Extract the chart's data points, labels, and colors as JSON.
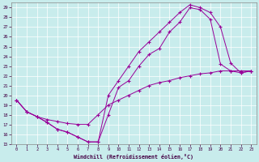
{
  "xlabel": "Windchill (Refroidissement éolien,°C)",
  "background_color": "#c8ecec",
  "line_color": "#990099",
  "grid_color": "#ffffff",
  "xlim": [
    -0.5,
    23.5
  ],
  "ylim": [
    15,
    29.5
  ],
  "xticks": [
    0,
    1,
    2,
    3,
    4,
    5,
    6,
    7,
    8,
    9,
    10,
    11,
    12,
    13,
    14,
    15,
    16,
    17,
    18,
    19,
    20,
    21,
    22,
    23
  ],
  "yticks": [
    15,
    16,
    17,
    18,
    19,
    20,
    21,
    22,
    23,
    24,
    25,
    26,
    27,
    28,
    29
  ],
  "line1_x": [
    0,
    1,
    2,
    3,
    4,
    5,
    6,
    7,
    8,
    9,
    10,
    11,
    12,
    13,
    14,
    15,
    16,
    17,
    18,
    19,
    20,
    21,
    22,
    23
  ],
  "line1_y": [
    19.5,
    18.3,
    17.8,
    17.2,
    16.5,
    16.2,
    15.7,
    15.2,
    15.2,
    18.0,
    20.8,
    21.5,
    23.0,
    24.2,
    24.8,
    26.5,
    27.5,
    29.0,
    28.8,
    27.8,
    23.2,
    22.5,
    22.3,
    22.5
  ],
  "line2_x": [
    0,
    1,
    2,
    3,
    4,
    5,
    6,
    7,
    8,
    9,
    10,
    11,
    12,
    13,
    14,
    15,
    16,
    17,
    18,
    19,
    20,
    21,
    22,
    23
  ],
  "line2_y": [
    19.5,
    18.3,
    17.8,
    17.2,
    16.5,
    16.2,
    15.7,
    15.2,
    15.2,
    20.0,
    21.5,
    23.0,
    24.5,
    25.5,
    26.5,
    27.5,
    28.5,
    29.3,
    29.0,
    28.5,
    27.0,
    23.3,
    22.3,
    22.5
  ],
  "line3_x": [
    0,
    1,
    2,
    3,
    4,
    5,
    6,
    7,
    8,
    9,
    10,
    11,
    12,
    13,
    14,
    15,
    16,
    17,
    18,
    19,
    20,
    21,
    22,
    23
  ],
  "line3_y": [
    19.5,
    18.3,
    17.8,
    17.5,
    17.3,
    17.1,
    17.0,
    17.0,
    18.0,
    19.0,
    19.5,
    20.0,
    20.5,
    21.0,
    21.3,
    21.5,
    21.8,
    22.0,
    22.2,
    22.3,
    22.5,
    22.5,
    22.5,
    22.5
  ],
  "figsize": [
    3.2,
    2.0
  ],
  "dpi": 100
}
